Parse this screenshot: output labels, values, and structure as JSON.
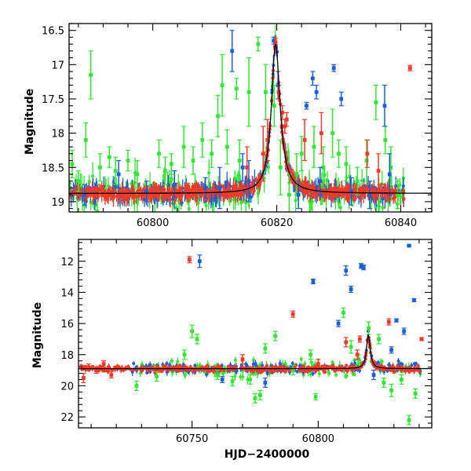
{
  "chart_data": [
    {
      "type": "scatter",
      "title": "",
      "xlabel": "",
      "ylabel": "Magnitude",
      "xlim": [
        60786.5,
        60845
      ],
      "ylim": [
        19.15,
        16.4
      ],
      "y_inverted": true,
      "x_ticks": [
        60800,
        60820,
        60840
      ],
      "y_ticks": [
        16.5,
        17,
        17.5,
        18,
        18.5,
        19
      ],
      "x_tick_labels": [
        "60800",
        "60820",
        "60840"
      ],
      "y_tick_labels": [
        "16.5",
        "17",
        "17.5",
        "18",
        "18.5",
        "19"
      ],
      "grid": false,
      "legend": "none",
      "colors": {
        "green": "#33e633",
        "blue": "#1a5fd6",
        "red": "#ef3b2c",
        "model": "#000000"
      },
      "series": [
        {
          "color": "green",
          "x": [
            60787,
            60788,
            60789.2,
            60790,
            60791.5,
            60793,
            60794,
            60796,
            60797.5,
            60801,
            60802,
            60803,
            60805,
            60806.5,
            60808,
            60809.5,
            60810.5,
            60811.2,
            60812,
            60813.5,
            60814,
            60815.5,
            60817,
            60818.2,
            60819.6,
            60820.6,
            60822,
            60823.2,
            60824,
            60826,
            60827.5,
            60829,
            60830,
            60831.2,
            60833,
            60834.5,
            60836,
            60837.5,
            60838.4,
            60839.5
          ],
          "y": [
            18.45,
            18.7,
            18.1,
            17.15,
            18.5,
            18.35,
            18.55,
            18.4,
            18.6,
            18.3,
            18.55,
            18.45,
            18.2,
            18.4,
            18.1,
            18.3,
            17.75,
            17.3,
            18.2,
            17.35,
            18.4,
            17.4,
            16.7,
            17.4,
            17.6,
            18.5,
            18.9,
            18.6,
            18.3,
            18.2,
            18.5,
            18.0,
            18.3,
            18.45,
            18.7,
            18.4,
            17.55,
            18.1,
            18.5,
            18.9
          ],
          "err": [
            0.2,
            0.15,
            0.25,
            0.35,
            0.2,
            0.15,
            0.2,
            0.15,
            0.2,
            0.2,
            0.2,
            0.15,
            0.3,
            0.2,
            0.25,
            0.2,
            0.3,
            0.45,
            0.25,
            0.15,
            0.3,
            0.5,
            0.1,
            0.4,
            0.3,
            0.4,
            0.3,
            0.3,
            0.25,
            0.3,
            0.3,
            0.35,
            0.2,
            0.25,
            0.2,
            0.3,
            0.25,
            0.2,
            0.3,
            0.2
          ]
        },
        {
          "color": "blue",
          "x": [
            60789,
            60794.5,
            60799,
            60803.5,
            60808.5,
            60810.8,
            60812.8,
            60814.5,
            60815.5,
            60819.5,
            60820.2,
            60823.5,
            60824.8,
            60825.8,
            60826.4,
            60827,
            60829.2,
            60830.4,
            60832,
            60835,
            60837.4,
            60838.2
          ],
          "y": [
            18.9,
            18.6,
            18.85,
            18.75,
            18.8,
            18.8,
            16.8,
            18.5,
            18.7,
            16.65,
            17.3,
            18.9,
            17.6,
            17.2,
            17.4,
            18.7,
            17.05,
            17.5,
            18.85,
            18.9,
            17.6,
            18.6
          ],
          "err": [
            0.15,
            0.2,
            0.15,
            0.2,
            0.15,
            0.3,
            0.3,
            0.2,
            0.3,
            0.05,
            0.2,
            0.2,
            0.05,
            0.1,
            0.1,
            0.2,
            0.05,
            0.1,
            0.2,
            0.2,
            0.3,
            0.3
          ]
        },
        {
          "color": "red",
          "x": [
            60819.8,
            60820.3,
            60820.9,
            60821.3,
            60821.6,
            60817.8,
            60818.5,
            60815.2,
            60824.5,
            60827.2,
            60834.6,
            60836.4,
            60841.5
          ],
          "y": [
            16.7,
            17.4,
            17.7,
            17.9,
            17.8,
            18.3,
            18.1,
            18.5,
            18.1,
            18.0,
            18.3,
            18.55,
            17.05
          ],
          "err": [
            0.08,
            0.1,
            0.1,
            0.1,
            0.1,
            0.4,
            0.3,
            0.3,
            0.3,
            0.3,
            0.2,
            0.25,
            0.04
          ]
        }
      ],
      "model": {
        "baseline": 18.88,
        "peak_x": 60819.8,
        "peak_y": 16.7,
        "rise_width": 0.8,
        "decay_width": 0.9
      }
    },
    {
      "type": "scatter",
      "title": "",
      "xlabel": "HJD−2400000",
      "ylabel": "Magnitude",
      "xlim": [
        60705,
        60845
      ],
      "ylim": [
        22.7,
        10.6
      ],
      "y_inverted": true,
      "x_ticks": [
        60750,
        60800
      ],
      "y_ticks": [
        12,
        14,
        16,
        18,
        20,
        22
      ],
      "x_tick_labels": [
        "60750",
        "60800"
      ],
      "y_tick_labels": [
        "12",
        "14",
        "16",
        "18",
        "20",
        "22"
      ],
      "grid": false,
      "legend": "none",
      "series": [
        {
          "color": "green",
          "x": [
            60728,
            60736,
            60747,
            60750,
            60752,
            60760,
            60766,
            60773,
            60775,
            60777,
            60779,
            60783,
            60790,
            60797,
            60799,
            60810,
            60813,
            60816,
            60820,
            60824,
            60826,
            60829,
            60833,
            60836,
            60838.5
          ],
          "y": [
            20.0,
            19.4,
            18.0,
            16.5,
            17.0,
            19.3,
            19.7,
            19.6,
            20.8,
            20.6,
            17.6,
            16.8,
            19.0,
            18.0,
            20.7,
            15.3,
            17.5,
            18.3,
            16.3,
            17.0,
            19.8,
            20.3,
            19.6,
            22.2,
            20.5
          ],
          "err": [
            0.3,
            0.3,
            0.3,
            0.4,
            0.3,
            0.3,
            0.3,
            0.3,
            0.3,
            0.3,
            0.3,
            0.3,
            0.3,
            0.3,
            0.2,
            0.3,
            0.4,
            0.3,
            0.4,
            0.3,
            0.3,
            0.4,
            0.3,
            0.3,
            0.3
          ]
        },
        {
          "color": "blue",
          "x": [
            60753,
            60762,
            60779,
            60798,
            60808,
            60811,
            60813,
            60817,
            60818,
            60822,
            60829,
            60831,
            60834,
            60836,
            60838
          ],
          "y": [
            12.0,
            19.6,
            19.8,
            13.3,
            16.0,
            12.6,
            13.8,
            12.3,
            12.4,
            19.3,
            17.7,
            15.8,
            16.5,
            11.0,
            14.5
          ],
          "err": [
            0.4,
            0.2,
            0.3,
            0.15,
            0.2,
            0.3,
            0.2,
            0.15,
            0.15,
            0.3,
            0.2,
            0.1,
            0.2,
            0.05,
            0.1
          ]
        },
        {
          "color": "red",
          "x": [
            60707,
            60709,
            60712,
            60715,
            60718,
            60749,
            60770,
            60786,
            60790,
            60800,
            60811,
            60815.5,
            60816.5,
            60828,
            60841
          ],
          "y": [
            19.5,
            18.8,
            19.0,
            18.6,
            19.3,
            11.9,
            18.3,
            18.9,
            15.4,
            18.6,
            17.2,
            18.0,
            17.0,
            15.9,
            17.0
          ],
          "err": [
            0.3,
            0.2,
            0.2,
            0.2,
            0.2,
            0.2,
            0.3,
            0.2,
            0.2,
            0.3,
            0.3,
            0.3,
            0.2,
            0.2,
            0.1
          ]
        }
      ],
      "model": {
        "baseline": 18.9,
        "peak_x": 60819.8,
        "peak_y": 16.7,
        "rise_width": 0.8,
        "decay_width": 0.9
      }
    }
  ]
}
